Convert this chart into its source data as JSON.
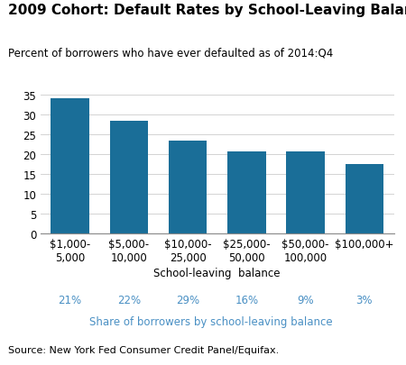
{
  "title": "2009 Cohort: Default Rates by School-Leaving Balance",
  "subtitle": "Percent of borrowers who have ever defaulted as of 2014:Q4",
  "xlabel": "School-leaving  balance",
  "source": "Source: New York Fed Consumer Credit Panel/Equifax.",
  "categories": [
    "$1,000-\n5,000",
    "$5,000-\n10,000",
    "$10,000-\n25,000",
    "$25,000-\n50,000",
    "$50,000-\n100,000",
    "$100,000+"
  ],
  "values": [
    34.0,
    28.4,
    23.4,
    20.6,
    20.5,
    17.4
  ],
  "bar_color": "#1a6e98",
  "shares": [
    "21%",
    "22%",
    "29%",
    "16%",
    "9%",
    "3%"
  ],
  "share_label": "Share of borrowers by school-leaving balance",
  "share_color": "#4a90c4",
  "ylim": [
    0,
    35
  ],
  "yticks": [
    0,
    5,
    10,
    15,
    20,
    25,
    30,
    35
  ],
  "title_fontsize": 11,
  "subtitle_fontsize": 8.5,
  "tick_fontsize": 8.5,
  "xlabel_fontsize": 8.5,
  "source_fontsize": 8,
  "share_fontsize": 8.5
}
